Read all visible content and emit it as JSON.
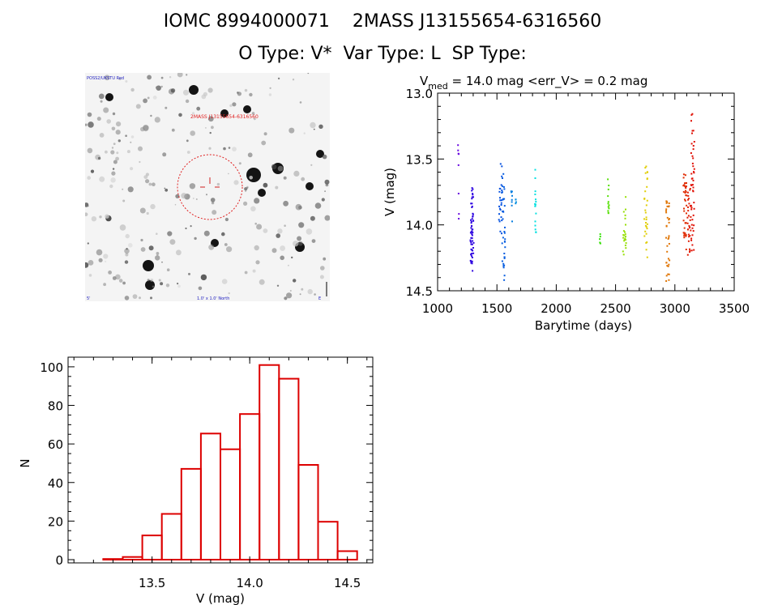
{
  "header": {
    "line1": "IOMC 8994000071    2MASS J13155654-6316560",
    "line2": "O Type: V*  Var Type: L  SP Type:"
  },
  "finder": {
    "corner_top_left": "POSS2/UKSTU Red",
    "label_top": "2MASS J13155654-6316560",
    "label_bottom": "1.0' x 1.0' North",
    "corner_bottom_left": "5'",
    "corner_bottom_right": "E"
  },
  "chart_data": [
    {
      "type": "scatter",
      "title_parts": {
        "v": "V",
        "med": "med",
        "rest": " = 14.0 mag <err_V> = 0.2 mag"
      },
      "xlabel": "Barytime (days)",
      "ylabel": "V (mag)",
      "xlim": [
        1000,
        3500
      ],
      "ylim": [
        14.5,
        13.0
      ],
      "xticks": [
        "1000",
        "1500",
        "2000",
        "2500",
        "3000",
        "3500"
      ],
      "yticks": [
        "13.0",
        "13.5",
        "14.0",
        "14.5"
      ],
      "colormap": "rainbow by time",
      "clusters": [
        {
          "x": 1175,
          "ymin": 13.35,
          "ymax": 14.02,
          "n": 8
        },
        {
          "x": 1290,
          "ymin": 13.72,
          "ymax": 14.35,
          "n": 60
        },
        {
          "x": 1530,
          "ymin": 13.45,
          "ymax": 14.1,
          "n": 24
        },
        {
          "x": 1555,
          "ymin": 13.6,
          "ymax": 14.45,
          "n": 34
        },
        {
          "x": 1625,
          "ymin": 13.7,
          "ymax": 14.05,
          "n": 8
        },
        {
          "x": 1660,
          "ymin": 13.8,
          "ymax": 13.86,
          "n": 4
        },
        {
          "x": 1825,
          "ymin": 13.58,
          "ymax": 14.2,
          "n": 16
        },
        {
          "x": 2370,
          "ymin": 14.05,
          "ymax": 14.15,
          "n": 5
        },
        {
          "x": 2440,
          "ymin": 13.63,
          "ymax": 13.92,
          "n": 12
        },
        {
          "x": 2575,
          "ymin": 13.78,
          "ymax": 14.25,
          "n": 22
        },
        {
          "x": 2755,
          "ymin": 13.55,
          "ymax": 14.25,
          "n": 30
        },
        {
          "x": 2940,
          "ymin": 13.82,
          "ymax": 14.43,
          "n": 36
        },
        {
          "x": 3085,
          "ymin": 13.6,
          "ymax": 14.2,
          "n": 40
        },
        {
          "x": 3120,
          "ymin": 13.7,
          "ymax": 14.25,
          "n": 30
        },
        {
          "x": 3150,
          "ymin": 13.15,
          "ymax": 14.2,
          "n": 45
        }
      ]
    },
    {
      "type": "bar",
      "subtype": "histogram",
      "xlabel": "V (mag)",
      "ylabel": "N",
      "xlim": [
        13.07,
        14.63
      ],
      "ylim": [
        0,
        105
      ],
      "xticks": [
        "13.5",
        "14.0",
        "14.5"
      ],
      "yticks": [
        "0",
        "20",
        "40",
        "60",
        "80",
        "100"
      ],
      "bin_edges": [
        13.15,
        13.25,
        13.35,
        13.45,
        13.55,
        13.65,
        13.75,
        13.85,
        13.95,
        14.05,
        14.15,
        14.25,
        14.35,
        14.45
      ],
      "values": [
        1,
        2,
        3,
        14,
        25,
        48,
        66,
        58,
        76,
        101,
        94,
        50,
        21,
        6
      ],
      "color": "#dd0000"
    }
  ]
}
